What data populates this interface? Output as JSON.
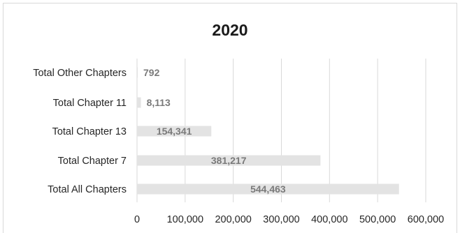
{
  "chart_data": {
    "type": "bar",
    "orientation": "horizontal",
    "title": "2020",
    "categories": [
      "Total Other Chapters",
      "Total Chapter 11",
      "Total Chapter 13",
      "Total Chapter 7",
      "Total All Chapters"
    ],
    "values": [
      792,
      8113,
      154341,
      381217,
      544463
    ],
    "data_labels": [
      "792",
      "8,113",
      "154,341",
      "381,217",
      "544,463"
    ],
    "x_ticks": [
      0,
      100000,
      200000,
      300000,
      400000,
      500000,
      600000
    ],
    "x_tick_labels": [
      "0",
      "100,000",
      "200,000",
      "300,000",
      "400,000",
      "500,000",
      "600,000"
    ],
    "xlim": [
      0,
      600000
    ],
    "grid": "vertical",
    "legend": "none",
    "bar_color": "#e3e3e3",
    "label_color": "#7a7a7a"
  }
}
